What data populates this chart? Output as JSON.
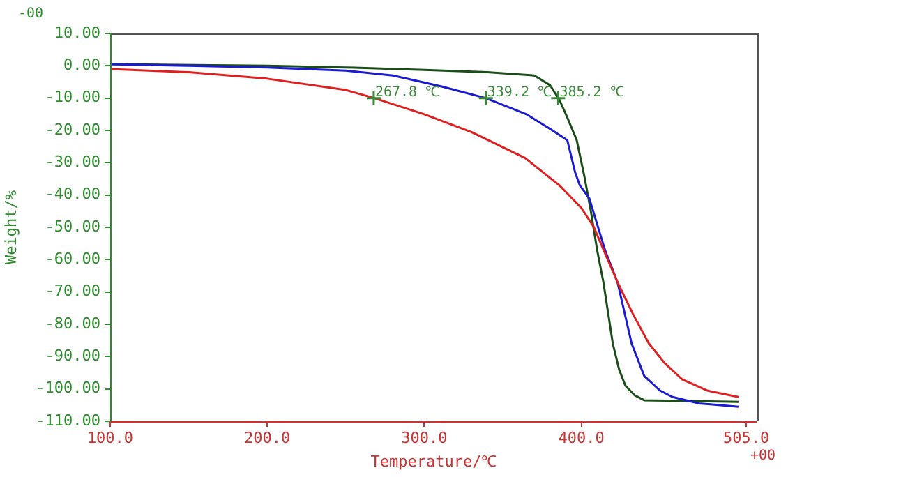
{
  "chart_data": {
    "type": "line",
    "xlabel": "Temperature/℃",
    "ylabel": "Weight/%",
    "xlim": [
      100,
      512
    ],
    "xticks": [
      {
        "value": 100,
        "label": "100.0"
      },
      {
        "value": 200,
        "label": "200.0"
      },
      {
        "value": 300,
        "label": "300.0"
      },
      {
        "value": 400,
        "label": "400.0"
      },
      {
        "value": 505,
        "label": "505.0"
      }
    ],
    "ylim": [
      -110,
      10
    ],
    "yticks": [
      {
        "value": 10,
        "label": "10.00"
      },
      {
        "value": 0,
        "label": "0.00"
      },
      {
        "value": -10,
        "label": "-10.00"
      },
      {
        "value": -20,
        "label": "-20.00"
      },
      {
        "value": -30,
        "label": "-30.00"
      },
      {
        "value": -40,
        "label": "-40.00"
      },
      {
        "value": -50,
        "label": "-50.00"
      },
      {
        "value": -60,
        "label": "-60.00"
      },
      {
        "value": -70,
        "label": "-70.00"
      },
      {
        "value": -80,
        "label": "-80.00"
      },
      {
        "value": -90,
        "label": "-90.00"
      },
      {
        "value": -100,
        "label": "-100.00"
      },
      {
        "value": -110,
        "label": "-110.00"
      }
    ],
    "grid": false,
    "legend": false,
    "marker": "none",
    "line_style": "solid",
    "series": [
      {
        "color": "#e02020",
        "x": [
          100,
          150,
          200,
          250,
          268,
          300,
          330,
          364,
          386,
          400,
          408,
          415,
          423,
          433,
          443,
          453,
          464,
          480,
          500
        ],
        "values": [
          -1,
          -2,
          -4,
          -7.5,
          -10,
          -15,
          -20.5,
          -28.5,
          -37,
          -44,
          -50,
          -58,
          -67,
          -77,
          -86,
          -92,
          -97,
          -100.5,
          -102.5
        ]
      },
      {
        "color": "#1a1ad0",
        "x": [
          100,
          150,
          200,
          250,
          280,
          311,
          339,
          365,
          380,
          391,
          396,
          399,
          405,
          410,
          415,
          423,
          432,
          440,
          450,
          458,
          475,
          500
        ],
        "values": [
          0.5,
          0,
          -0.5,
          -1.5,
          -3,
          -6.4,
          -10,
          -15,
          -19.5,
          -23,
          -33,
          -37,
          -41,
          -49,
          -57,
          -67,
          -86,
          -96,
          -100.5,
          -102.5,
          -104.5,
          -105.5
        ]
      },
      {
        "color": "#1a4d1a",
        "x": [
          100,
          200,
          250,
          300,
          340,
          370,
          380,
          386,
          391,
          397,
          402,
          406,
          410,
          414,
          420,
          424,
          428,
          434,
          440,
          500
        ],
        "values": [
          0.5,
          0,
          -0.5,
          -1.3,
          -2,
          -3,
          -6,
          -10.5,
          -16,
          -23,
          -34.5,
          -45,
          -57,
          -67,
          -86,
          -94,
          -99,
          -102,
          -103.5,
          -104
        ]
      }
    ],
    "annotations": [
      {
        "text": "267.8 ℃",
        "x": 267.8,
        "y": -10
      },
      {
        "text": "339.2 ℃",
        "x": 339.2,
        "y": -10
      },
      {
        "text": "385.2 ℃",
        "x": 385.2,
        "y": -10
      },
      "-00",
      "+00"
    ]
  }
}
